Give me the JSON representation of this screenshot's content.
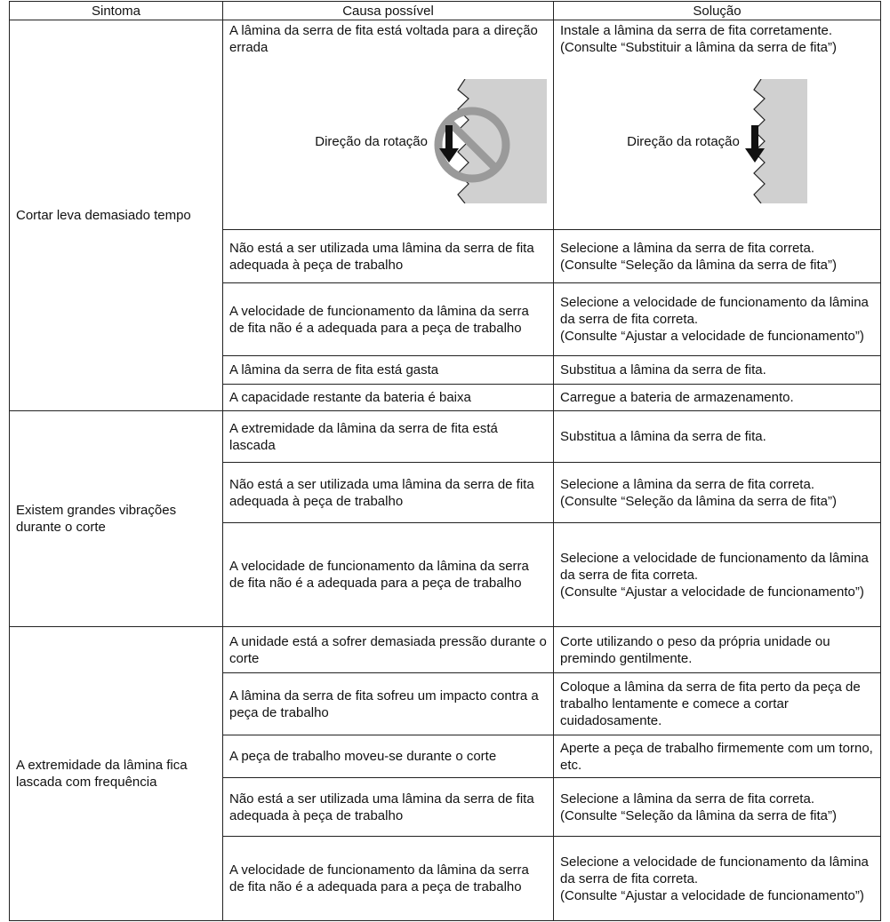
{
  "table": {
    "header": [
      "Sintoma",
      "Causa possível",
      "Solução"
    ],
    "groups": [
      {
        "symptom": "Cortar leva demasiado tempo",
        "rows": [
          {
            "cause": "A lâmina da serra de fita está voltada para a direção errada",
            "cause_figure_label": "Direção da rotação",
            "solution": [
              "Instale a lâmina da serra de fita corretamente.",
              "(Consulte “Substituir a lâmina da serra de fita”)"
            ],
            "solution_figure_label": "Direção da rotação"
          },
          {
            "cause": "Não está a ser utilizada uma lâmina da serra de fita adequada à peça de trabalho",
            "solution": [
              "Selecione a lâmina da serra de fita correta.",
              "(Consulte “Seleção da lâmina da serra de fita”)"
            ]
          },
          {
            "cause": "A velocidade de funcionamento da lâmina da serra de fita não é a adequada para a peça de trabalho",
            "solution": [
              "Selecione a velocidade de funcionamento da lâmina da serra de fita correta.",
              "(Consulte “Ajustar a velocidade de funcionamento”)"
            ]
          },
          {
            "cause": "A lâmina da serra de fita está gasta",
            "solution": [
              "Substitua a lâmina da serra de fita."
            ]
          },
          {
            "cause": "A capacidade restante da bateria é baixa",
            "solution": [
              "Carregue a bateria de armazenamento."
            ]
          }
        ]
      },
      {
        "symptom": "Existem grandes vibrações durante o corte",
        "rows": [
          {
            "cause": "A extremidade da lâmina da serra de fita está lascada",
            "solution": [
              "Substitua a lâmina da serra de fita."
            ]
          },
          {
            "cause": "Não está a ser utilizada uma lâmina da serra de fita adequada à peça de trabalho",
            "solution": [
              "Selecione a lâmina da serra de fita correta.",
              "(Consulte “Seleção da lâmina da serra de fita”)"
            ]
          },
          {
            "cause": "A velocidade de funcionamento da lâmina da serra de fita não é a adequada para a peça de trabalho",
            "solution": [
              "Selecione a velocidade de funcionamento da lâmina da serra de fita correta.",
              "(Consulte “Ajustar a velocidade de funcionamento”)"
            ]
          }
        ]
      },
      {
        "symptom": "A extremidade da lâmina fica lascada com frequência",
        "rows": [
          {
            "cause": "A unidade está a sofrer demasiada pressão durante o corte",
            "solution": [
              "Corte utilizando o peso da própria unidade ou premindo gentilmente."
            ]
          },
          {
            "cause": "A lâmina da serra de fita sofreu um impacto contra a peça de trabalho",
            "solution": [
              "Coloque a lâmina da serra de fita perto da peça de trabalho lentamente e comece a cortar cuidadosamente."
            ]
          },
          {
            "cause": "A peça de trabalho moveu-se durante o corte",
            "solution": [
              "Aperte a peça de trabalho firmemente com um torno, etc."
            ]
          },
          {
            "cause": "Não está a ser utilizada uma lâmina da serra de fita adequada à peça de trabalho",
            "solution": [
              "Selecione a lâmina da serra de fita correta.",
              "(Consulte “Seleção da lâmina da serra de fita”)"
            ]
          },
          {
            "cause": "A velocidade de funcionamento da lâmina da serra de fita não é a adequada para a peça de trabalho",
            "solution": [
              "Selecione a velocidade de funcionamento da lâmina da serra de fita correta.",
              "(Consulte “Ajustar a velocidade de funcionamento”)"
            ]
          }
        ]
      }
    ]
  }
}
